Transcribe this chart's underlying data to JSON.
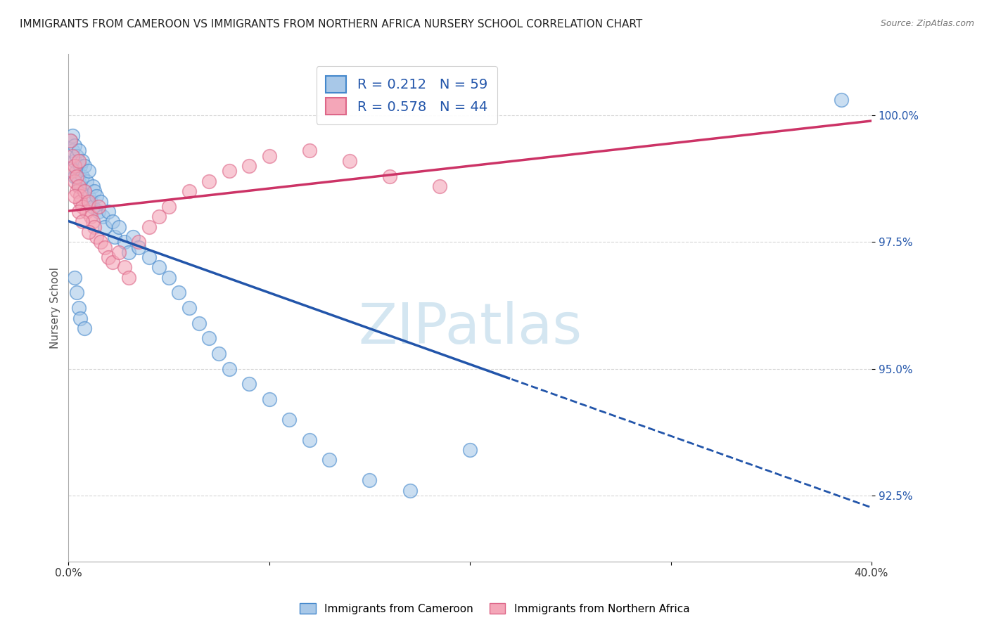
{
  "title": "IMMIGRANTS FROM CAMEROON VS IMMIGRANTS FROM NORTHERN AFRICA NURSERY SCHOOL CORRELATION CHART",
  "source": "Source: ZipAtlas.com",
  "ylabel": "Nursery School",
  "xmin": 0.0,
  "xmax": 0.4,
  "ymin": 91.2,
  "ymax": 101.2,
  "yticks": [
    92.5,
    95.0,
    97.5,
    100.0
  ],
  "r1": 0.212,
  "n1": 59,
  "r2": 0.578,
  "n2": 44,
  "blue_color": "#a8c8e8",
  "pink_color": "#f4a6b8",
  "blue_edge_color": "#4488cc",
  "pink_edge_color": "#dd6688",
  "blue_line_color": "#2255aa",
  "pink_line_color": "#cc3366",
  "watermark_color": "#d0e4f0",
  "cameroon_x": [
    0.001,
    0.002,
    0.002,
    0.003,
    0.003,
    0.003,
    0.004,
    0.004,
    0.005,
    0.005,
    0.006,
    0.006,
    0.007,
    0.007,
    0.008,
    0.008,
    0.009,
    0.01,
    0.01,
    0.011,
    0.012,
    0.012,
    0.013,
    0.014,
    0.015,
    0.016,
    0.017,
    0.018,
    0.02,
    0.022,
    0.023,
    0.025,
    0.028,
    0.03,
    0.032,
    0.035,
    0.04,
    0.045,
    0.05,
    0.055,
    0.06,
    0.065,
    0.07,
    0.075,
    0.08,
    0.09,
    0.1,
    0.11,
    0.12,
    0.13,
    0.15,
    0.17,
    0.2,
    0.003,
    0.004,
    0.005,
    0.006,
    0.008,
    0.385
  ],
  "cameroon_y": [
    99.5,
    99.6,
    99.3,
    99.4,
    99.1,
    98.8,
    99.2,
    98.9,
    99.3,
    98.7,
    99.0,
    98.6,
    98.8,
    99.1,
    98.5,
    99.0,
    98.7,
    98.4,
    98.9,
    98.3,
    98.6,
    98.2,
    98.5,
    98.4,
    98.1,
    98.3,
    98.0,
    97.8,
    98.1,
    97.9,
    97.6,
    97.8,
    97.5,
    97.3,
    97.6,
    97.4,
    97.2,
    97.0,
    96.8,
    96.5,
    96.2,
    95.9,
    95.6,
    95.3,
    95.0,
    94.7,
    94.4,
    94.0,
    93.6,
    93.2,
    92.8,
    92.6,
    93.4,
    96.8,
    96.5,
    96.2,
    96.0,
    95.8,
    100.3
  ],
  "northern_africa_x": [
    0.001,
    0.002,
    0.002,
    0.003,
    0.003,
    0.004,
    0.004,
    0.005,
    0.005,
    0.006,
    0.006,
    0.007,
    0.008,
    0.009,
    0.01,
    0.011,
    0.012,
    0.013,
    0.014,
    0.015,
    0.016,
    0.018,
    0.02,
    0.022,
    0.025,
    0.028,
    0.03,
    0.035,
    0.04,
    0.045,
    0.05,
    0.06,
    0.07,
    0.08,
    0.09,
    0.1,
    0.12,
    0.14,
    0.16,
    0.185,
    0.003,
    0.005,
    0.007,
    0.01
  ],
  "northern_africa_y": [
    99.5,
    99.2,
    98.9,
    99.0,
    98.7,
    98.8,
    98.5,
    98.6,
    99.1,
    98.4,
    98.3,
    98.2,
    98.5,
    98.1,
    98.3,
    98.0,
    97.9,
    97.8,
    97.6,
    98.2,
    97.5,
    97.4,
    97.2,
    97.1,
    97.3,
    97.0,
    96.8,
    97.5,
    97.8,
    98.0,
    98.2,
    98.5,
    98.7,
    98.9,
    99.0,
    99.2,
    99.3,
    99.1,
    98.8,
    98.6,
    98.4,
    98.1,
    97.9,
    97.7
  ]
}
